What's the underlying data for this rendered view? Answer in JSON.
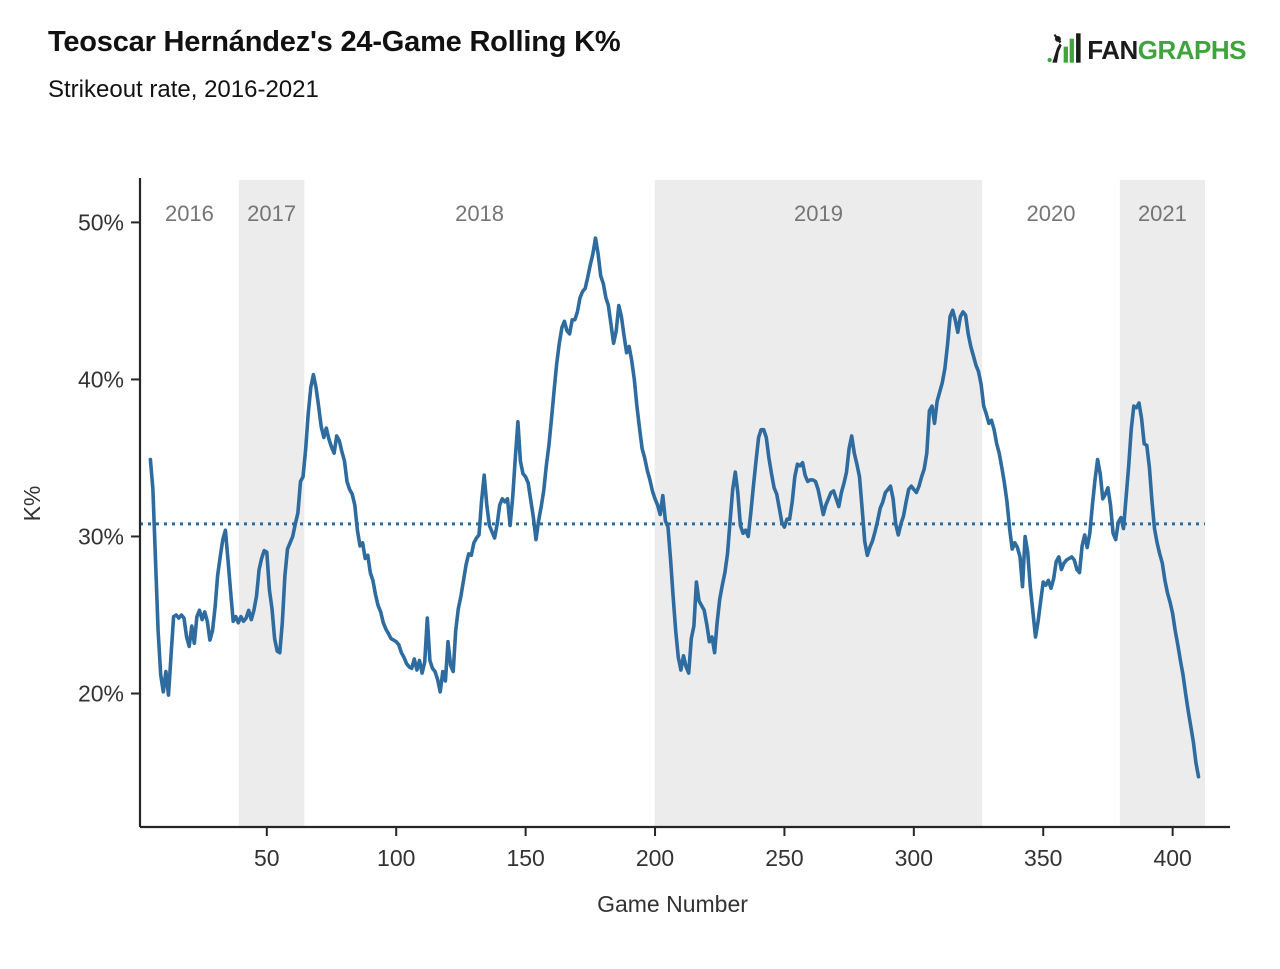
{
  "header": {
    "title": "Teoscar Hernández's 24-Game Rolling K%",
    "subtitle": "Strikeout rate, 2016-2021"
  },
  "logo": {
    "fan": "FAN",
    "graphs": "GRAPHS",
    "green": "#3FA43D",
    "black": "#1B1B1B"
  },
  "chart_data": {
    "type": "line",
    "title": "Teoscar Hernández's 24-Game Rolling K%",
    "subtitle": "Strikeout rate, 2016-2021",
    "xlabel": "Game Number",
    "ylabel": "K%",
    "x_ticks": [
      50,
      100,
      150,
      200,
      250,
      300,
      350,
      400
    ],
    "y_ticks": [
      20,
      30,
      40,
      50
    ],
    "y_tick_suffix": "%",
    "xlim": [
      1,
      412.5
    ],
    "ylim": [
      11.5,
      52.7
    ],
    "grid": false,
    "legend": "none",
    "line_color": "#2E6B9F",
    "band_color": "#ECECEC",
    "year_label_color": "#757575",
    "axis_color": "#262626",
    "tick_label_color": "#333333",
    "average_line": {
      "value": 30.8,
      "style": "dotted",
      "color": "#2E6B9F"
    },
    "year_bands": [
      {
        "label": "2016",
        "start": 1,
        "end": 39.2,
        "shaded": false
      },
      {
        "label": "2017",
        "start": 39.2,
        "end": 64.5,
        "shaded": true
      },
      {
        "label": "2018",
        "start": 64.5,
        "end": 199.9,
        "shaded": false
      },
      {
        "label": "2019",
        "start": 199.9,
        "end": 326.4,
        "shaded": true
      },
      {
        "label": "2020",
        "start": 326.4,
        "end": 379.6,
        "shaded": false
      },
      {
        "label": "2021",
        "start": 379.6,
        "end": 412.5,
        "shaded": true
      }
    ],
    "series": [
      {
        "name": "24-game rolling K%",
        "start_game": 5,
        "step": 1,
        "values": [
          34.9,
          33.0,
          28.5,
          24.0,
          21.2,
          20.1,
          21.4,
          19.9,
          22.5,
          24.9,
          25.0,
          24.8,
          25.0,
          24.8,
          23.6,
          23.0,
          24.3,
          23.2,
          24.9,
          25.3,
          24.7,
          25.2,
          24.6,
          23.4,
          24.0,
          25.5,
          27.5,
          28.7,
          29.8,
          30.4,
          28.5,
          26.5,
          24.6,
          24.9,
          24.5,
          24.9,
          24.6,
          24.8,
          25.3,
          24.7,
          25.3,
          26.2,
          27.9,
          28.6,
          29.1,
          29.0,
          26.6,
          25.4,
          23.5,
          22.7,
          22.6,
          24.5,
          27.5,
          29.2,
          29.6,
          30.0,
          30.8,
          31.5,
          33.5,
          33.8,
          35.5,
          37.8,
          39.5,
          40.3,
          39.5,
          38.3,
          37.0,
          36.3,
          36.9,
          36.2,
          35.7,
          35.3,
          36.4,
          36.1,
          35.4,
          34.8,
          33.5,
          33.0,
          32.7,
          32.0,
          30.4,
          29.4,
          29.6,
          28.6,
          28.8,
          27.7,
          27.2,
          26.3,
          25.6,
          25.2,
          24.5,
          24.1,
          23.8,
          23.5,
          23.4,
          23.3,
          23.1,
          22.6,
          22.3,
          21.9,
          21.7,
          21.6,
          22.2,
          21.5,
          22.1,
          21.3,
          22.0,
          24.8,
          22.1,
          21.6,
          21.4,
          20.9,
          20.1,
          21.4,
          20.8,
          23.3,
          21.8,
          21.4,
          24.0,
          25.4,
          26.2,
          27.2,
          28.2,
          28.9,
          28.8,
          29.6,
          29.9,
          30.1,
          32.3,
          33.9,
          32.0,
          30.7,
          30.3,
          29.9,
          30.8,
          32.0,
          32.4,
          32.2,
          32.4,
          30.7,
          32.5,
          35.0,
          37.3,
          34.8,
          34.0,
          33.8,
          33.4,
          32.3,
          31.2,
          29.8,
          31.0,
          31.9,
          32.9,
          34.5,
          35.8,
          37.5,
          39.3,
          41.0,
          42.3,
          43.3,
          43.7,
          43.1,
          42.9,
          43.8,
          43.8,
          44.3,
          45.2,
          45.6,
          45.8,
          46.5,
          47.3,
          48.0,
          49.0,
          48.0,
          46.6,
          46.1,
          45.2,
          44.7,
          43.5,
          42.3,
          43.1,
          44.7,
          44.0,
          42.8,
          41.7,
          42.1,
          41.2,
          40.0,
          38.3,
          36.9,
          35.6,
          35.0,
          34.2,
          33.6,
          32.9,
          32.4,
          32.0,
          31.4,
          32.6,
          31.0,
          30.6,
          28.5,
          26.2,
          24.0,
          22.3,
          21.5,
          22.4,
          21.7,
          21.3,
          23.5,
          24.3,
          27.1,
          25.9,
          25.6,
          25.3,
          24.4,
          23.3,
          23.6,
          22.6,
          24.5,
          26.0,
          26.9,
          27.7,
          28.9,
          31.0,
          33.0,
          34.1,
          32.8,
          30.7,
          30.2,
          30.4,
          30.0,
          31.5,
          33.2,
          34.8,
          36.3,
          36.8,
          36.8,
          36.3,
          35.0,
          34.0,
          33.1,
          32.7,
          31.8,
          30.9,
          30.6,
          31.1,
          31.1,
          32.2,
          33.8,
          34.6,
          34.5,
          34.7,
          33.9,
          33.5,
          33.6,
          33.6,
          33.5,
          33.0,
          32.2,
          31.4,
          32.0,
          32.4,
          32.8,
          32.9,
          32.4,
          31.9,
          32.8,
          33.4,
          34.1,
          35.6,
          36.4,
          35.3,
          34.6,
          33.8,
          31.8,
          29.7,
          28.8,
          29.3,
          29.7,
          30.3,
          31.0,
          31.8,
          32.2,
          32.8,
          33.0,
          33.2,
          32.4,
          30.8,
          30.1,
          30.8,
          31.3,
          32.2,
          33.0,
          33.2,
          33.0,
          32.8,
          33.2,
          33.8,
          34.3,
          35.3,
          38.0,
          38.3,
          37.2,
          38.6,
          39.2,
          39.8,
          40.7,
          42.2,
          44.0,
          44.4,
          43.8,
          43.0,
          44.0,
          44.3,
          44.1,
          42.9,
          42.1,
          41.5,
          40.9,
          40.5,
          39.7,
          38.3,
          37.8,
          37.2,
          37.4,
          36.8,
          35.9,
          35.3,
          34.4,
          33.4,
          32.2,
          30.5,
          29.2,
          29.6,
          29.3,
          28.7,
          26.8,
          30.0,
          29.0,
          26.8,
          25.2,
          23.6,
          24.6,
          25.9,
          27.1,
          26.9,
          27.2,
          26.7,
          27.3,
          28.4,
          28.7,
          27.9,
          28.3,
          28.5,
          28.6,
          28.7,
          28.5,
          27.9,
          27.7,
          29.4,
          30.1,
          29.3,
          30.2,
          32.0,
          33.6,
          34.9,
          34.0,
          32.4,
          32.7,
          33.1,
          32.0,
          30.2,
          29.8,
          30.9,
          31.2,
          30.5,
          32.5,
          34.5,
          36.8,
          38.3,
          38.2,
          38.5,
          37.5,
          35.9,
          35.8,
          34.4,
          32.3,
          30.5,
          29.6,
          28.9,
          28.3,
          27.2,
          26.4,
          25.8,
          25.1,
          24.0,
          23.1,
          22.1,
          21.2,
          20.0,
          18.9,
          17.9,
          16.9,
          15.6,
          14.7
        ]
      }
    ]
  }
}
